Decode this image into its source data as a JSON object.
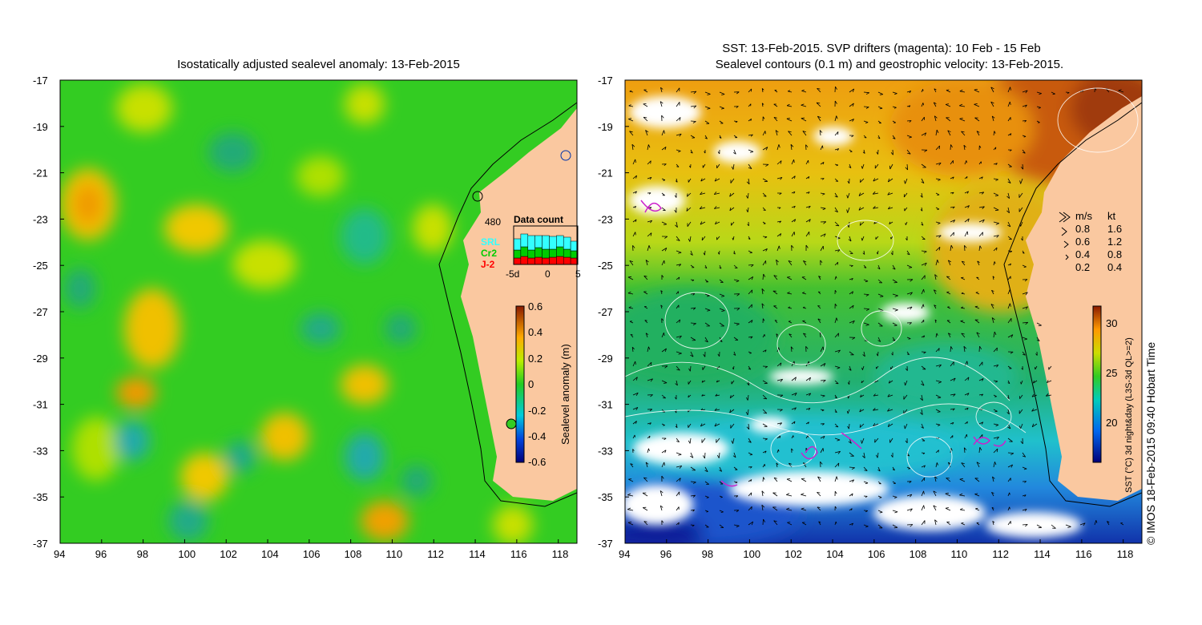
{
  "left_panel": {
    "title": "Isostatically adjusted sealevel anomaly: 13-Feb-2015",
    "colorbar_label": "Sealevel anomaly (m)",
    "colorbar_ticks": [
      "0.6",
      "0.4",
      "0.2",
      "0",
      "-0.2",
      "-0.4",
      "-0.6"
    ],
    "data_count": {
      "title": "Data count",
      "max_label": "480",
      "legend": [
        {
          "name": "SRL",
          "color": "#33ffff"
        },
        {
          "name": "Cr2",
          "color": "#00cc00"
        },
        {
          "name": "J-2",
          "color": "#ff0000"
        }
      ],
      "x_ticks": [
        "-5d",
        "0",
        "5"
      ]
    }
  },
  "right_panel": {
    "title_line1": "SST: 13-Feb-2015. SVP drifters (magenta): 10 Feb - 15 Feb",
    "title_line2": "Sealevel contours (0.1 m) and geostrophic velocity: 13-Feb-2015.",
    "colorbar_label": "SST (°C) 3d night&day (L3S-3d QL>=2)",
    "colorbar_ticks": [
      "30",
      "25",
      "20"
    ],
    "velocity_legend": {
      "header_ms": "m/s",
      "header_kt": "kt",
      "rows": [
        {
          "ms": "0.8",
          "kt": "1.6"
        },
        {
          "ms": "0.6",
          "kt": "1.2"
        },
        {
          "ms": "0.4",
          "kt": "0.8"
        },
        {
          "ms": "0.2",
          "kt": "0.4"
        }
      ]
    }
  },
  "axes": {
    "y_ticks": [
      "-17",
      "-19",
      "-21",
      "-23",
      "-25",
      "-27",
      "-29",
      "-31",
      "-33",
      "-35",
      "-37"
    ],
    "x_ticks": [
      "94",
      "96",
      "98",
      "100",
      "102",
      "104",
      "106",
      "108",
      "110",
      "112",
      "114",
      "116",
      "118"
    ]
  },
  "copyright": "© IMOS 18-Feb-2015 09:40 Hobart Time",
  "colors": {
    "land": "#fac8a0",
    "ssh_base": "#33cc22",
    "sst_warm": "#e09010",
    "sst_cool": "#22bb55"
  }
}
